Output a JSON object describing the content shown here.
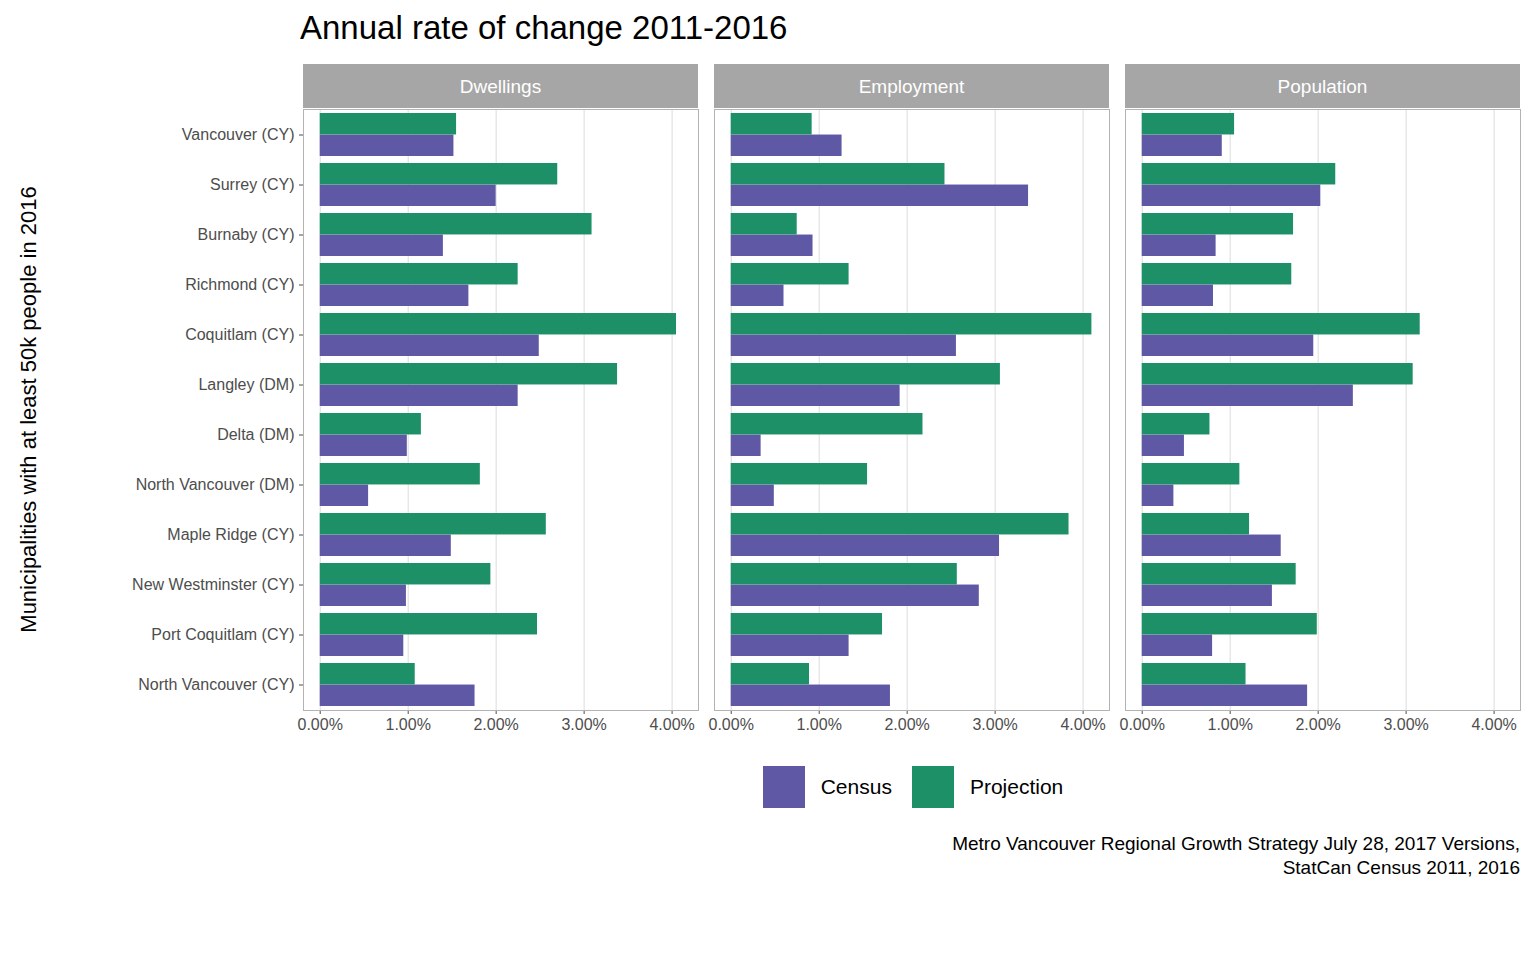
{
  "chart_data": {
    "type": "bar",
    "orientation": "horizontal",
    "title": "Annual rate of change 2011-2016",
    "ylabel": "Municipalities with at least 50k people in 2016",
    "caption": [
      "Metro Vancouver Regional Growth Strategy July 28, 2017 Versions,",
      "StatCan Census 2011, 2016"
    ],
    "categories": [
      "Vancouver (CY)",
      "Surrey (CY)",
      "Burnaby (CY)",
      "Richmond (CY)",
      "Coquitlam (CY)",
      "Langley (DM)",
      "Delta (DM)",
      "North Vancouver (DM)",
      "Maple Ridge (CY)",
      "New Westminster (CY)",
      "Port Coquitlam (CY)",
      "North Vancouver (CY)"
    ],
    "panels": [
      {
        "name": "Dwellings",
        "series": [
          {
            "name": "Census",
            "color": "#5f58a5",
            "values": [
              1.52,
              2.0,
              1.4,
              1.69,
              2.49,
              2.25,
              0.99,
              0.55,
              1.49,
              0.98,
              0.95,
              1.76
            ]
          },
          {
            "name": "Projection",
            "color": "#1e9068",
            "values": [
              1.55,
              2.7,
              3.09,
              2.25,
              4.05,
              3.38,
              1.15,
              1.82,
              2.57,
              1.94,
              2.47,
              1.08
            ]
          }
        ]
      },
      {
        "name": "Employment",
        "series": [
          {
            "name": "Census",
            "color": "#5f58a5",
            "values": [
              1.26,
              3.38,
              0.93,
              0.6,
              2.56,
              1.92,
              0.34,
              0.49,
              3.05,
              2.82,
              1.34,
              1.81
            ]
          },
          {
            "name": "Projection",
            "color": "#1e9068",
            "values": [
              0.92,
              2.43,
              0.75,
              1.34,
              4.1,
              3.06,
              2.18,
              1.55,
              3.84,
              2.57,
              1.72,
              0.89
            ]
          }
        ]
      },
      {
        "name": "Population",
        "series": [
          {
            "name": "Census",
            "color": "#5f58a5",
            "values": [
              0.91,
              2.03,
              0.84,
              0.81,
              1.95,
              2.4,
              0.48,
              0.36,
              1.58,
              1.48,
              0.8,
              1.88
            ]
          },
          {
            "name": "Projection",
            "color": "#1e9068",
            "values": [
              1.05,
              2.2,
              1.72,
              1.7,
              3.16,
              3.08,
              0.77,
              1.11,
              1.22,
              1.75,
              1.99,
              1.18
            ]
          }
        ]
      }
    ],
    "xlim": [
      -0.19,
      4.3
    ],
    "xticks": [
      {
        "value": 0,
        "label": "0.00%"
      },
      {
        "value": 1,
        "label": "1.00%"
      },
      {
        "value": 2,
        "label": "2.00%"
      },
      {
        "value": 3,
        "label": "3.00%"
      },
      {
        "value": 4,
        "label": "4.00%"
      }
    ],
    "grid": true,
    "legend": "bottom"
  }
}
